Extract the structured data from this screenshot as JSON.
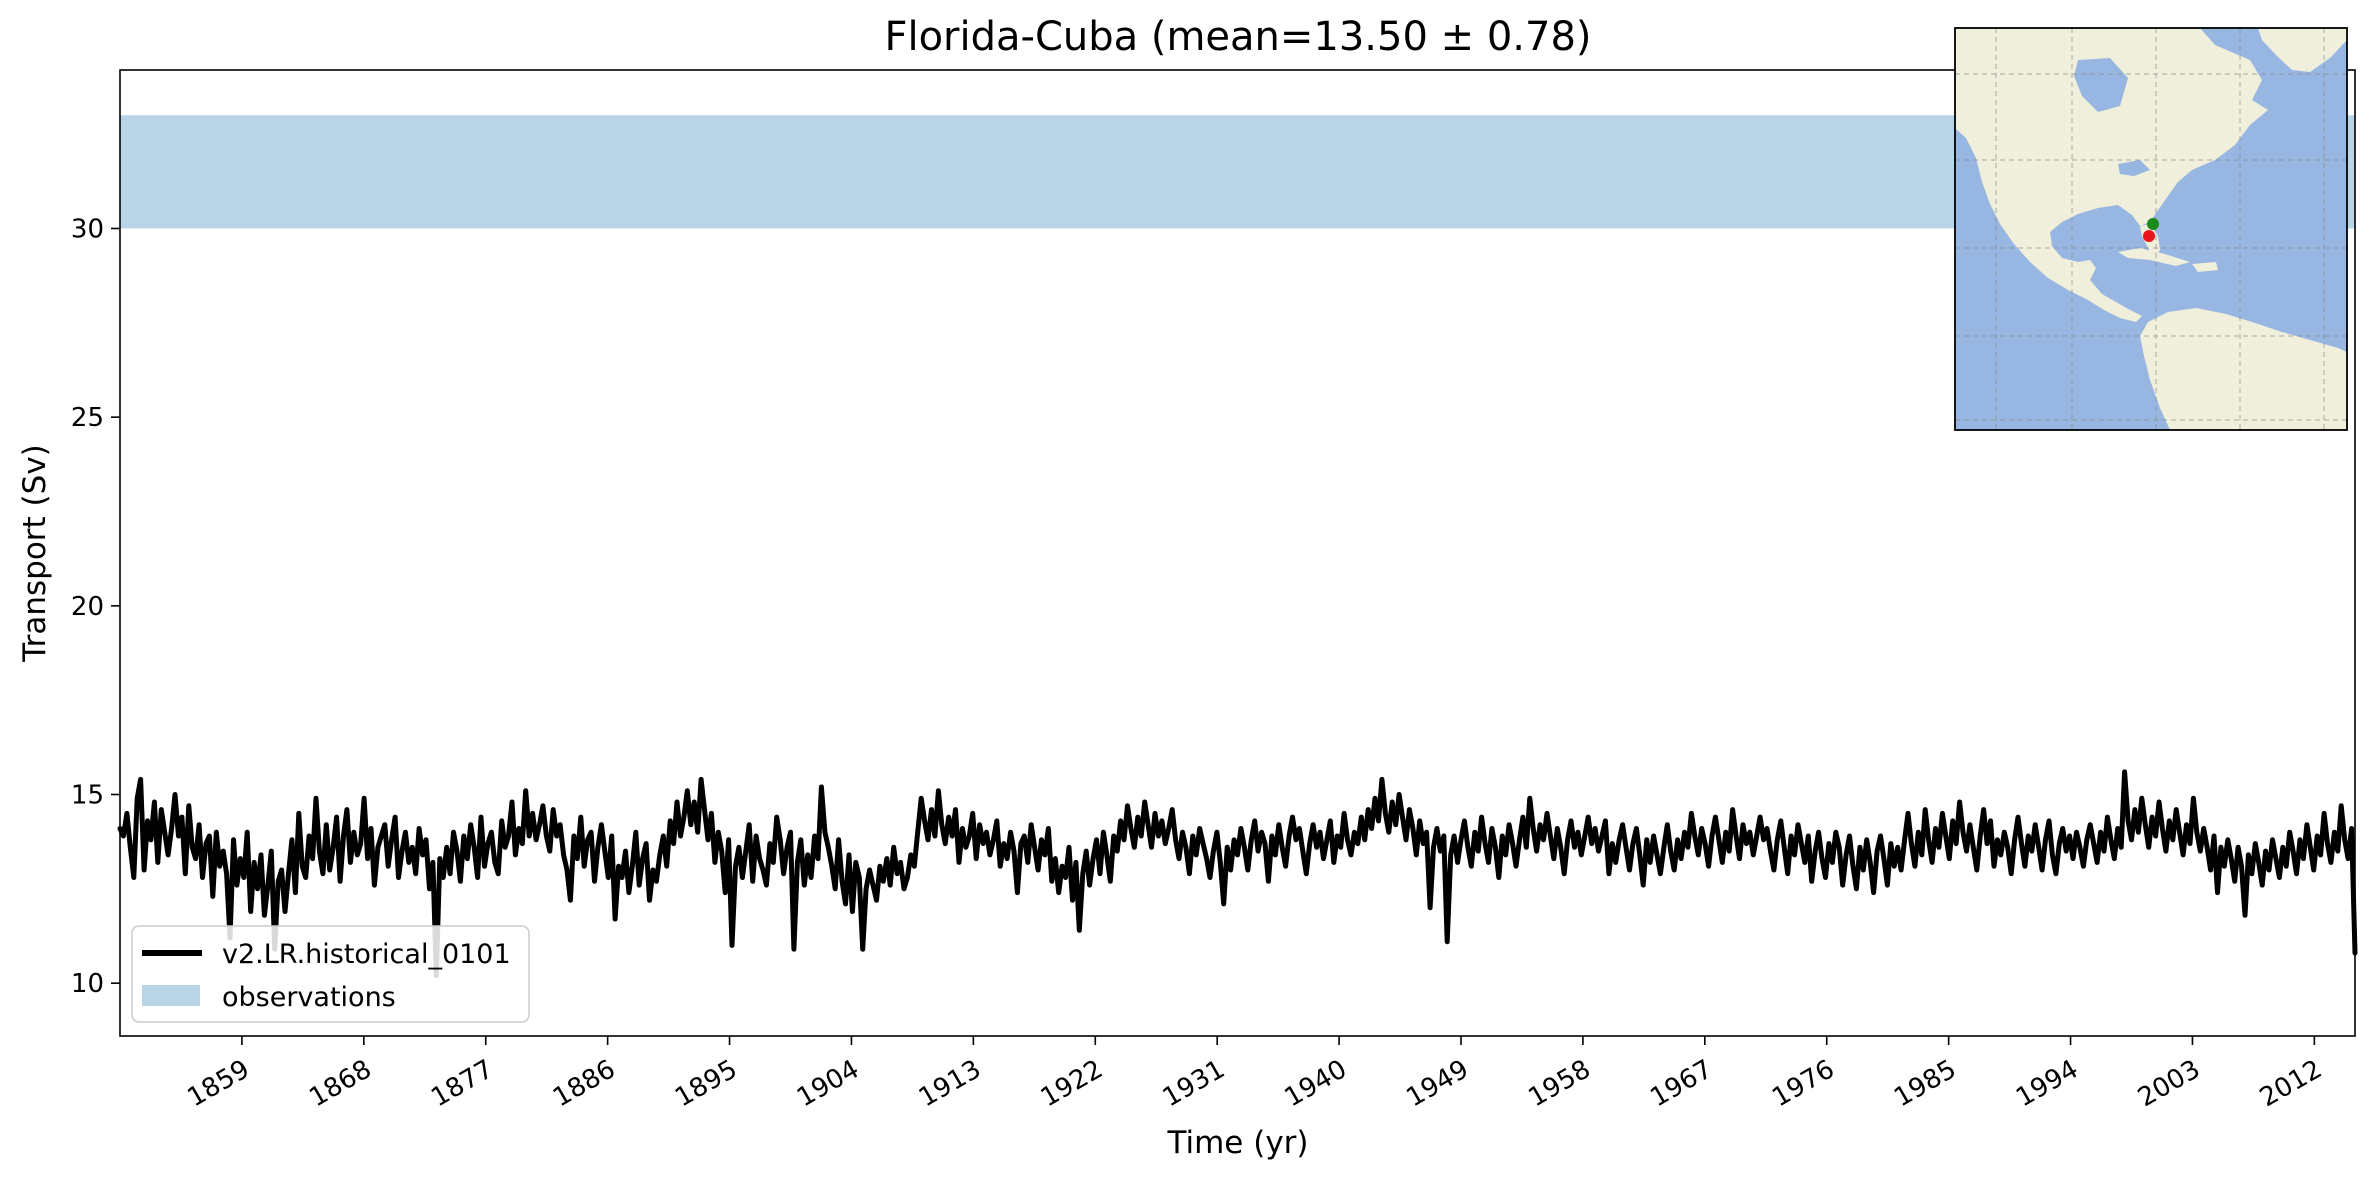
{
  "chart_data": {
    "type": "line",
    "title": "Florida-Cuba (mean=13.50 ± 0.78)",
    "xlabel": "Time (yr)",
    "ylabel": "Transport (Sv)",
    "xlim": [
      1850,
      2015
    ],
    "ylim": [
      8.6,
      34.2
    ],
    "x_ticks": [
      1859,
      1868,
      1877,
      1886,
      1895,
      1904,
      1913,
      1922,
      1931,
      1940,
      1949,
      1958,
      1967,
      1976,
      1985,
      1994,
      2003,
      2012
    ],
    "y_ticks": [
      10,
      15,
      20,
      25,
      30
    ],
    "grid": false,
    "legend_position": "lower-left",
    "series": [
      {
        "name": "v2.LR.historical_0101",
        "color": "#000000",
        "x_start": 1850,
        "x_step": 0.0833,
        "values": [
          14.1,
          13.9,
          14.5,
          13.6,
          12.8,
          14.9,
          15.4,
          13.0,
          14.3,
          13.8,
          14.8,
          13.2,
          14.6,
          14.0,
          13.4,
          14.1,
          15.0,
          13.9,
          14.4,
          12.9,
          14.7,
          13.6,
          13.3,
          14.2,
          12.8,
          13.7,
          13.9,
          12.3,
          14.0,
          13.1,
          13.5,
          12.9,
          11.2,
          13.8,
          12.6,
          13.3,
          12.8,
          14.0,
          11.9,
          13.2,
          12.5,
          13.4,
          11.8,
          12.6,
          13.5,
          10.9,
          12.7,
          13.0,
          11.9,
          12.9,
          13.8,
          12.4,
          14.5,
          13.1,
          12.8,
          13.9,
          13.3,
          14.9,
          13.5,
          12.9,
          14.2,
          13.0,
          13.6,
          14.4,
          12.7,
          13.9,
          14.6,
          13.2,
          14.0,
          13.4,
          13.7,
          14.9,
          13.3,
          14.1,
          12.6,
          13.6,
          13.9,
          14.2,
          13.1,
          13.8,
          14.4,
          12.8,
          13.5,
          14.0,
          13.2,
          13.6,
          12.9,
          14.1,
          13.4,
          13.8,
          12.5,
          13.2,
          10.2,
          13.3,
          12.8,
          13.6,
          12.9,
          14.0,
          13.5,
          12.7,
          13.9,
          13.3,
          14.2,
          13.6,
          12.8,
          14.4,
          13.1,
          13.7,
          14.0,
          13.2,
          12.9,
          14.3,
          13.6,
          13.9,
          14.8,
          13.4,
          14.1,
          13.7,
          15.1,
          13.9,
          14.5,
          13.8,
          14.2,
          14.7,
          13.9,
          13.5,
          14.6,
          13.9,
          14.2,
          13.4,
          13.0,
          12.2,
          13.9,
          13.3,
          14.4,
          13.1,
          13.8,
          14.0,
          12.7,
          13.6,
          14.2,
          13.5,
          12.8,
          13.9,
          11.7,
          13.1,
          12.8,
          13.5,
          12.4,
          13.1,
          14.0,
          12.6,
          13.3,
          13.7,
          12.2,
          13.0,
          12.7,
          13.4,
          13.9,
          13.1,
          14.3,
          13.7,
          14.8,
          13.9,
          14.4,
          15.1,
          14.2,
          14.8,
          14.0,
          15.4,
          14.6,
          13.8,
          14.5,
          13.2,
          14.0,
          13.5,
          12.4,
          13.8,
          11.0,
          13.1,
          13.6,
          12.8,
          13.5,
          14.2,
          12.7,
          13.9,
          13.3,
          13.0,
          12.6,
          13.7,
          13.2,
          14.4,
          13.8,
          12.9,
          13.6,
          14.0,
          10.9,
          13.2,
          13.8,
          12.6,
          13.4,
          12.8,
          13.9,
          13.3,
          15.2,
          14.0,
          13.6,
          13.1,
          12.5,
          13.8,
          12.7,
          12.1,
          13.4,
          11.9,
          13.2,
          12.8,
          10.9,
          12.5,
          13.0,
          12.6,
          12.2,
          13.1,
          12.7,
          13.3,
          12.6,
          13.6,
          12.9,
          13.2,
          12.5,
          12.8,
          13.4,
          13.1,
          14.0,
          14.9,
          14.3,
          13.8,
          14.6,
          13.9,
          15.1,
          14.2,
          13.7,
          14.4,
          13.9,
          14.6,
          13.2,
          14.1,
          13.6,
          13.9,
          14.5,
          13.3,
          14.2,
          13.7,
          14.0,
          13.4,
          13.8,
          14.3,
          13.1,
          13.7,
          13.3,
          14.0,
          13.5,
          12.4,
          13.7,
          13.9,
          13.2,
          14.2,
          13.6,
          13.0,
          13.8,
          13.4,
          14.1,
          12.7,
          13.3,
          12.4,
          13.1,
          12.8,
          13.6,
          12.2,
          13.2,
          11.4,
          12.9,
          13.5,
          12.6,
          13.3,
          13.8,
          12.9,
          14.0,
          13.4,
          12.7,
          13.9,
          13.5,
          14.3,
          13.8,
          14.7,
          14.1,
          13.6,
          14.4,
          13.9,
          14.8,
          14.2,
          13.6,
          14.5,
          13.9,
          14.3,
          13.7,
          14.1,
          14.6,
          13.8,
          13.3,
          14.0,
          13.6,
          12.9,
          13.9,
          13.4,
          14.1,
          13.7,
          13.3,
          12.8,
          13.5,
          14.0,
          13.2,
          12.1,
          13.6,
          13.0,
          13.8,
          13.4,
          14.1,
          13.6,
          13.0,
          13.8,
          14.3,
          13.5,
          14.0,
          13.7,
          12.7,
          13.9,
          13.4,
          14.2,
          13.6,
          13.1,
          13.9,
          14.4,
          13.8,
          14.1,
          13.5,
          12.9,
          13.7,
          14.2,
          13.6,
          14.0,
          13.3,
          13.8,
          14.3,
          13.2,
          13.9,
          13.6,
          14.5,
          13.8,
          13.4,
          14.0,
          13.7,
          14.4,
          13.8,
          14.6,
          14.1,
          14.9,
          14.3,
          15.4,
          14.5,
          14.0,
          14.8,
          14.2,
          15.0,
          14.4,
          13.8,
          14.6,
          14.1,
          13.4,
          14.3,
          13.7,
          14.0,
          12.0,
          13.6,
          14.1,
          13.5,
          13.9,
          11.1,
          13.4,
          13.9,
          13.2,
          13.8,
          14.3,
          13.6,
          13.1,
          14.0,
          13.5,
          14.4,
          13.7,
          13.2,
          14.1,
          13.6,
          12.8,
          13.9,
          13.4,
          14.2,
          13.7,
          13.1,
          13.8,
          14.4,
          13.6,
          14.9,
          14.1,
          13.5,
          14.2,
          13.8,
          14.5,
          13.9,
          13.3,
          14.1,
          13.6,
          12.9,
          13.8,
          14.3,
          13.6,
          14.0,
          13.4,
          13.9,
          14.4,
          13.7,
          14.1,
          13.5,
          13.9,
          14.3,
          12.9,
          13.7,
          13.2,
          13.8,
          14.2,
          13.6,
          13.0,
          13.7,
          14.1,
          13.4,
          12.6,
          13.8,
          13.2,
          13.9,
          13.4,
          12.9,
          13.6,
          14.2,
          13.5,
          13.0,
          13.8,
          13.3,
          14.0,
          13.6,
          14.5,
          13.9,
          13.4,
          14.1,
          13.7,
          13.1,
          13.9,
          14.4,
          13.8,
          13.2,
          14.0,
          13.5,
          14.6,
          13.9,
          13.3,
          14.2,
          13.7,
          14.0,
          13.4,
          13.9,
          14.4,
          13.8,
          14.1,
          13.5,
          13.0,
          13.8,
          14.3,
          13.6,
          12.9,
          13.9,
          13.4,
          14.2,
          13.7,
          13.2,
          13.9,
          12.7,
          13.5,
          14.0,
          13.3,
          12.8,
          13.7,
          13.2,
          14.0,
          13.6,
          12.6,
          13.4,
          13.9,
          13.1,
          12.5,
          13.6,
          13.0,
          13.8,
          13.2,
          12.4,
          13.5,
          13.9,
          13.3,
          12.6,
          13.7,
          13.1,
          13.6,
          13.0,
          13.8,
          14.5,
          13.7,
          13.1,
          14.0,
          13.4,
          14.6,
          13.8,
          13.2,
          14.1,
          13.6,
          14.5,
          13.9,
          13.3,
          14.3,
          13.7,
          14.8,
          14.0,
          13.5,
          14.2,
          13.6,
          13.0,
          13.9,
          14.6,
          13.7,
          14.3,
          13.1,
          13.8,
          13.4,
          14.0,
          13.6,
          12.9,
          13.8,
          14.4,
          13.7,
          13.1,
          13.9,
          13.5,
          14.2,
          13.6,
          13.0,
          13.8,
          14.3,
          13.4,
          12.9,
          13.7,
          14.1,
          13.5,
          13.9,
          13.3,
          14.0,
          13.6,
          13.1,
          13.8,
          14.2,
          13.7,
          13.2,
          14.0,
          13.5,
          14.4,
          13.8,
          13.3,
          14.1,
          13.6,
          15.6,
          14.3,
          13.8,
          14.6,
          14.0,
          14.9,
          14.2,
          13.6,
          14.4,
          13.9,
          14.8,
          14.1,
          13.5,
          14.3,
          13.8,
          14.6,
          14.0,
          13.4,
          14.2,
          13.7,
          14.9,
          14.0,
          13.5,
          14.1,
          13.6,
          13.0,
          13.9,
          12.4,
          13.6,
          13.1,
          13.8,
          13.3,
          12.7,
          13.6,
          13.1,
          11.8,
          13.4,
          12.9,
          13.7,
          13.2,
          12.6,
          13.5,
          13.0,
          13.8,
          13.3,
          12.8,
          13.6,
          13.1,
          14.0,
          13.5,
          12.9,
          13.8,
          13.3,
          14.2,
          13.6,
          13.0,
          13.9,
          13.4,
          14.5,
          13.7,
          13.2,
          14.0,
          13.5,
          14.7,
          13.8,
          13.3,
          14.1,
          10.8
        ]
      }
    ],
    "bands": [
      {
        "name": "observations",
        "color": "#a6c8e0",
        "y_from": 30,
        "y_to": 33
      }
    ]
  },
  "inset_map": {
    "land_color": "#efefdc",
    "ocean_color": "#97b6e1",
    "point_colors": [
      "#1a8a1a",
      "#e8141a"
    ]
  }
}
